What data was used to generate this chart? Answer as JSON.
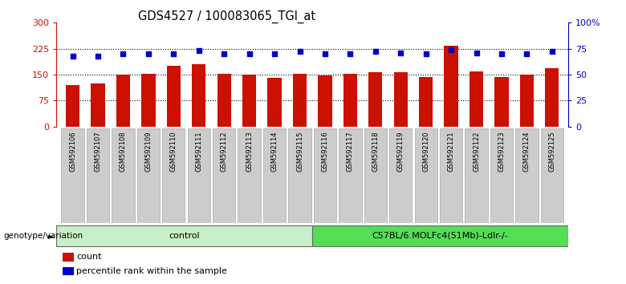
{
  "title": "GDS4527 / 100083065_TGI_at",
  "samples": [
    "GSM592106",
    "GSM592107",
    "GSM592108",
    "GSM592109",
    "GSM592110",
    "GSM592111",
    "GSM592112",
    "GSM592113",
    "GSM592114",
    "GSM592115",
    "GSM592116",
    "GSM592117",
    "GSM592118",
    "GSM592119",
    "GSM592120",
    "GSM592121",
    "GSM592122",
    "GSM592123",
    "GSM592124",
    "GSM592125"
  ],
  "bar_values": [
    120,
    125,
    150,
    152,
    175,
    180,
    153,
    150,
    140,
    152,
    147,
    153,
    157,
    157,
    142,
    233,
    160,
    143,
    150,
    168
  ],
  "percentile_values": [
    68,
    68,
    70,
    70,
    70,
    73,
    70,
    70,
    70,
    72,
    70,
    70,
    72,
    71,
    70,
    74,
    71,
    70,
    70,
    72
  ],
  "n_control": 10,
  "n_treat": 10,
  "treatment_label": "C57BL/6.MOLFc4(51Mb)-Ldlr-/-",
  "control_label": "control",
  "bar_color": "#cc1100",
  "dot_color": "#0000cc",
  "left_ylim": [
    0,
    300
  ],
  "right_ylim": [
    0,
    100
  ],
  "left_yticks": [
    0,
    75,
    150,
    225,
    300
  ],
  "right_yticks": [
    0,
    25,
    50,
    75,
    100
  ],
  "right_yticklabels": [
    "0",
    "25",
    "50",
    "75",
    "100%"
  ],
  "tick_bg_color": "#cccccc",
  "control_bg": "#c8f0c8",
  "treatment_bg": "#55dd55",
  "genotype_label": "genotype/variation",
  "legend_count": "count",
  "legend_percentile": "percentile rank within the sample",
  "title_fontsize": 10.5,
  "bar_width": 0.55
}
